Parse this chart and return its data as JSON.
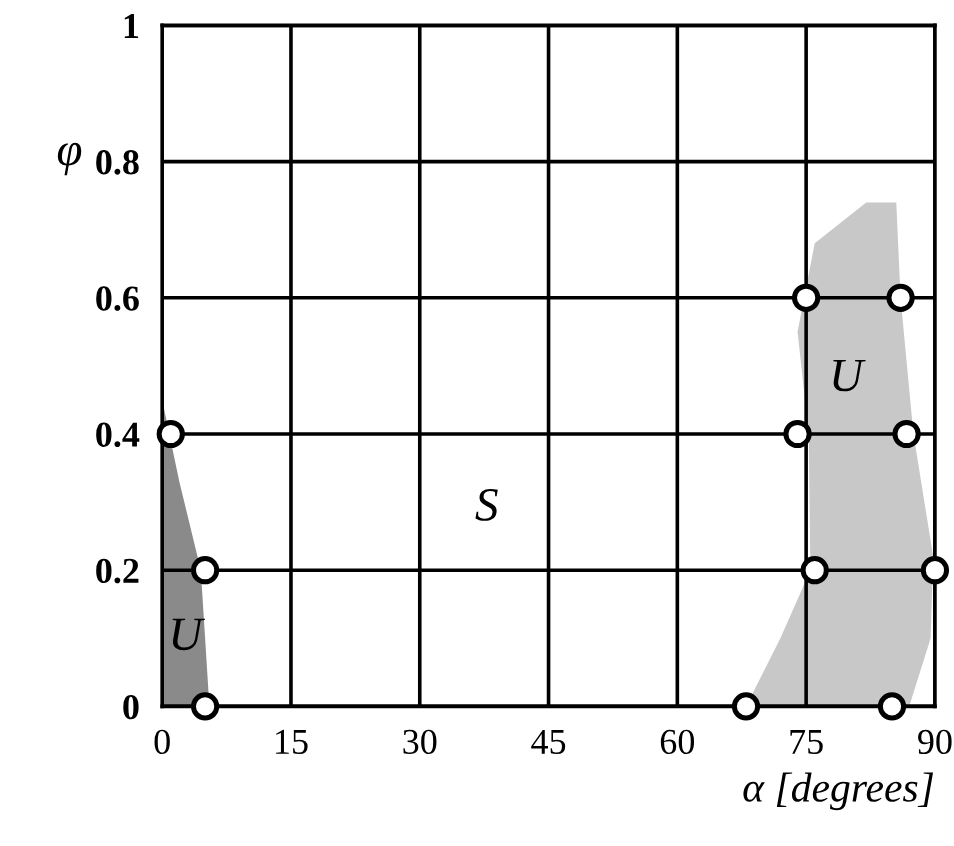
{
  "chart_data": {
    "type": "scatter",
    "xlabel": "α [degrees]",
    "ylabel": "φ",
    "x": [
      1,
      5,
      5,
      68,
      85,
      76,
      90,
      74,
      86.7,
      75,
      86
    ],
    "values": [
      0.4,
      0.2,
      0,
      0,
      0,
      0.2,
      0.2,
      0.4,
      0.4,
      0.6,
      0.6
    ],
    "color": "#000000",
    "marker": "circle",
    "xlim": [
      0,
      90
    ],
    "xticks": [
      0,
      15,
      30,
      45,
      60,
      75,
      90
    ],
    "ylim": [
      0,
      1
    ],
    "yticks": [
      0,
      0.2,
      0.4,
      0.6,
      0.8,
      1
    ],
    "grid": true,
    "annotations": [
      "S",
      "U",
      "U"
    ]
  }
}
